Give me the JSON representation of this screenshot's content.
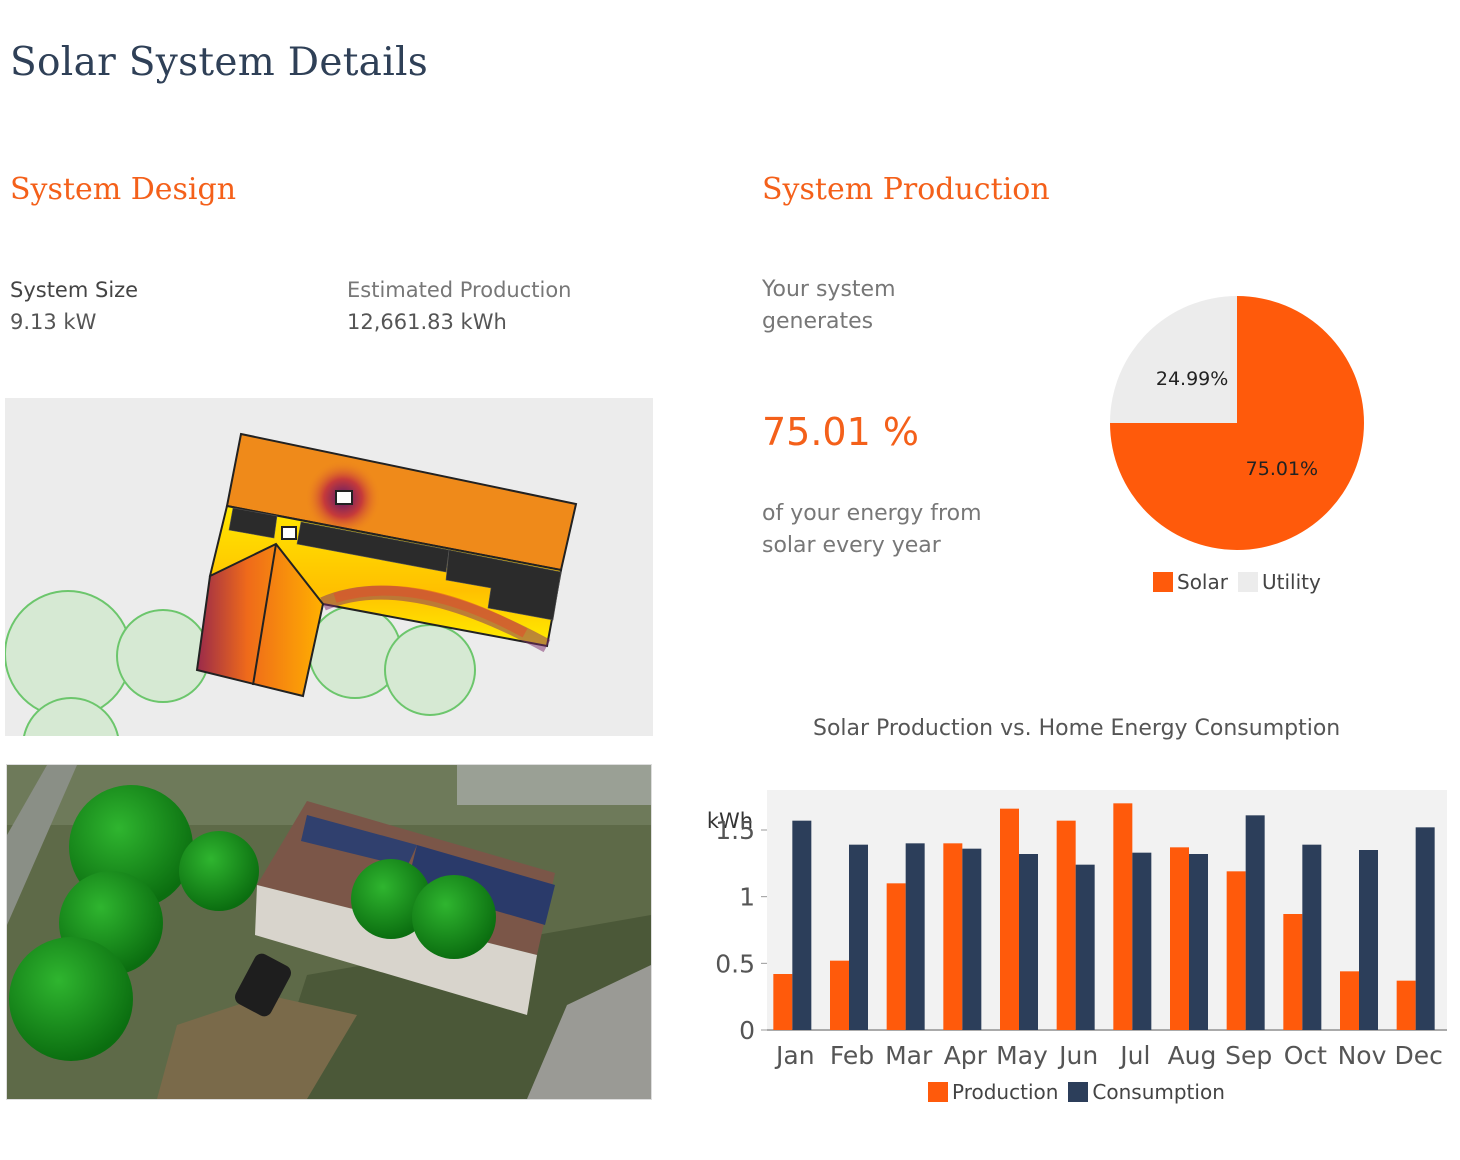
{
  "page": {
    "title": "Solar System Details"
  },
  "design": {
    "title": "System Design",
    "system_size_label": "System Size",
    "system_size_value": "9.13 kW",
    "est_production_label": "Estimated Production",
    "est_production_value": "12,661.83 kWh"
  },
  "production": {
    "title": "System Production",
    "intro": "Your system generates",
    "percent": "75.01 %",
    "outro": "of your energy from solar every year"
  },
  "colors": {
    "solar": "#ff5a0b",
    "utility": "#ececec",
    "consumption": "#2c3e5a",
    "accent": "#f4601a",
    "title": "#2f4057"
  },
  "pie": {
    "legend": [
      {
        "name": "Solar",
        "color": "#ff5a0b"
      },
      {
        "name": "Utility",
        "color": "#ececec"
      }
    ]
  },
  "bar_chart": {
    "legend": [
      {
        "name": "Production",
        "color": "#ff5a0b"
      },
      {
        "name": "Consumption",
        "color": "#2c3e5a"
      }
    ]
  },
  "chart_data": [
    {
      "type": "pie",
      "slices": [
        {
          "name": "Solar",
          "value": 75.01,
          "label": "75.01%"
        },
        {
          "name": "Utility",
          "value": 24.99,
          "label": "24.99%"
        }
      ]
    },
    {
      "type": "bar",
      "title": "Solar Production vs. Home Energy Consumption",
      "ylabel": "kWh",
      "categories": [
        "Jan",
        "Feb",
        "Mar",
        "Apr",
        "May",
        "Jun",
        "Jul",
        "Aug",
        "Sep",
        "Oct",
        "Nov",
        "Dec"
      ],
      "series": [
        {
          "name": "Production",
          "values": [
            0.42,
            0.52,
            1.1,
            1.4,
            1.66,
            1.57,
            1.7,
            1.37,
            1.19,
            0.87,
            0.44,
            0.37
          ]
        },
        {
          "name": "Consumption",
          "values": [
            1.57,
            1.39,
            1.4,
            1.36,
            1.32,
            1.24,
            1.33,
            1.32,
            1.61,
            1.39,
            1.35,
            1.52
          ]
        }
      ],
      "ylim": [
        0,
        1.8
      ],
      "yticks": [
        0,
        0.5,
        1,
        1.5
      ],
      "ytick_labels": [
        "0",
        "0.5",
        "1",
        "1.5"
      ],
      "grid": false,
      "legend": "bottom"
    }
  ]
}
